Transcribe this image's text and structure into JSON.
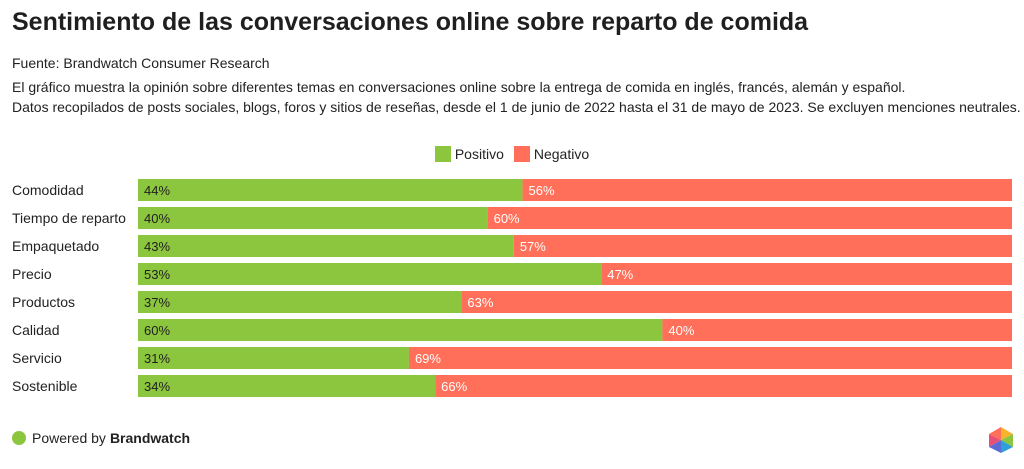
{
  "title": "Sentimiento de las conversaciones online sobre reparto de comida",
  "source": "Fuente: Brandwatch Consumer Research",
  "description_line1": "El gráfico muestra la opinión sobre diferentes temas en conversaciones online sobre la entrega de comida en inglés, francés, alemán y español.",
  "description_line2": "Datos recopilados de posts sociales, blogs, foros y sitios de reseñas, desde el 1 de junio de 2022 hasta el 31 de mayo de 2023. Se excluyen menciones neutrales.",
  "footer": {
    "prefix": "Powered by",
    "brand": "Brandwatch",
    "dot_color": "#8cc63f",
    "logo_icon": "brandwatch-hexagon-logo"
  },
  "colors": {
    "positive": "#8cc63f",
    "negative": "#ff6f59"
  },
  "chart_data": {
    "type": "bar",
    "orientation": "horizontal",
    "stacked": true,
    "normalized_percent": true,
    "legend_position": "top-center",
    "categories": [
      "Comodidad",
      "Tiempo de reparto",
      "Empaquetado",
      "Precio",
      "Productos",
      "Calidad",
      "Servicio",
      "Sostenible"
    ],
    "series": [
      {
        "name": "Positivo",
        "values": [
          44,
          40,
          43,
          53,
          37,
          60,
          31,
          34
        ],
        "labels": [
          "44%",
          "40%",
          "43%",
          "53%",
          "37%",
          "60%",
          "31%",
          "34%"
        ]
      },
      {
        "name": "Negativo",
        "values": [
          56,
          60,
          57,
          47,
          63,
          40,
          69,
          66
        ],
        "labels": [
          "56%",
          "60%",
          "57%",
          "47%",
          "63%",
          "40%",
          "69%",
          "66%"
        ]
      }
    ],
    "xlim": [
      0,
      100
    ]
  }
}
